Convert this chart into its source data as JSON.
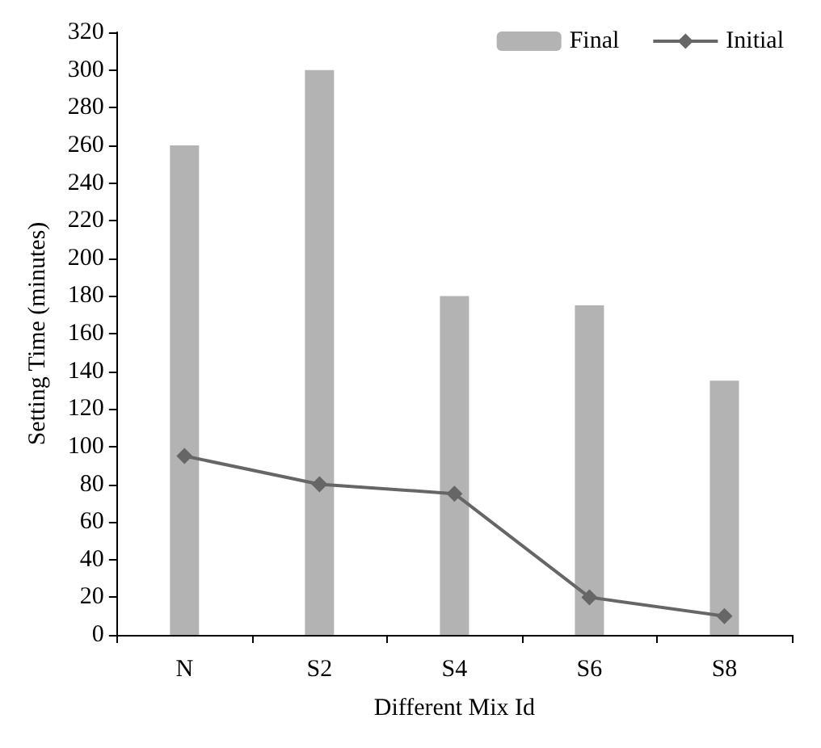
{
  "chart_data": {
    "type": "bar",
    "xlabel": "Different Mix Id",
    "ylabel": "Setting Time (minutes)",
    "categories": [
      "N",
      "S2",
      "S4",
      "S6",
      "S8"
    ],
    "series": [
      {
        "name": "Final",
        "color": "#b3b3b3",
        "values": [
          260,
          300,
          180,
          175,
          135
        ]
      },
      {
        "name": "Initial",
        "type": "line",
        "color": "#666666",
        "marker": "diamond",
        "values": [
          95,
          80,
          75,
          20,
          10
        ]
      }
    ],
    "ylim": [
      0,
      320
    ],
    "yticks": [
      0,
      20,
      40,
      60,
      80,
      100,
      120,
      140,
      160,
      180,
      200,
      220,
      240,
      260,
      280,
      300,
      320
    ],
    "grid": false,
    "legend": "top right"
  }
}
